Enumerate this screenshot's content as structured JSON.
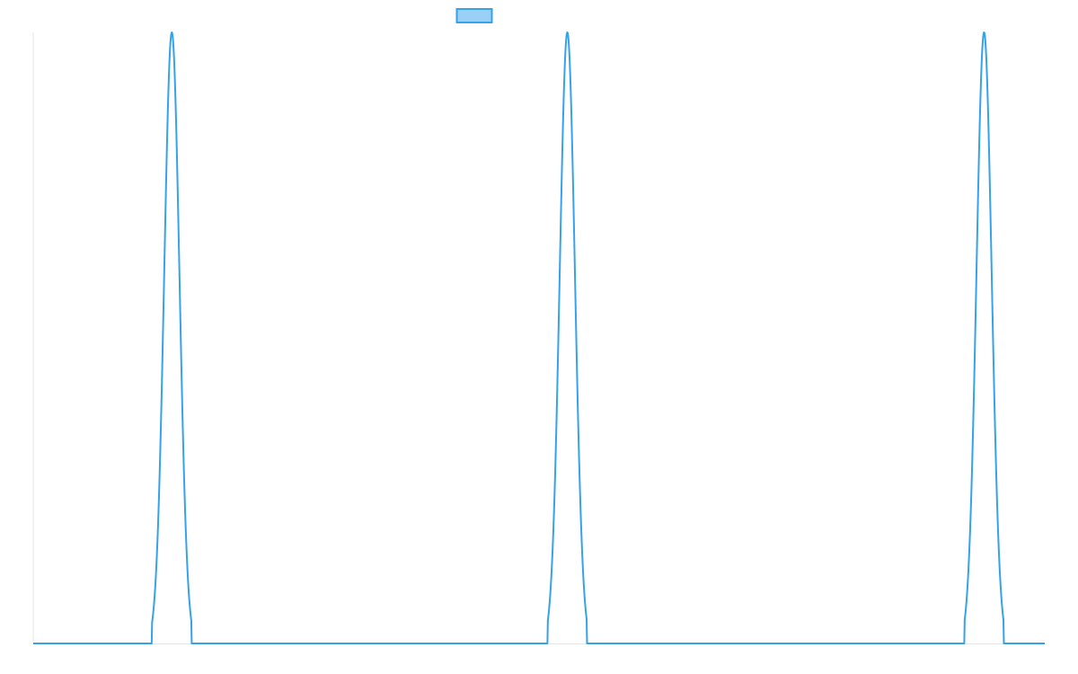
{
  "chart_data": {
    "type": "line",
    "title": "",
    "xlabel": "",
    "ylabel": "",
    "xlim": [
      0,
      100
    ],
    "ylim": [
      0,
      1
    ],
    "grid": false,
    "legend": {
      "placement": "top-center",
      "entries": [
        {
          "name": "",
          "color": "#36a2eb"
        }
      ]
    },
    "series": [
      {
        "name": "",
        "color": "#36a2eb",
        "fill": "#9ad0f5",
        "baseline": 0,
        "peaks": [
          {
            "center": 13.7,
            "height": 1,
            "half_width": 1.95
          },
          {
            "center": 52.8,
            "height": 1,
            "half_width": 1.95
          },
          {
            "center": 94.0,
            "height": 1,
            "half_width": 1.95
          }
        ]
      }
    ]
  }
}
